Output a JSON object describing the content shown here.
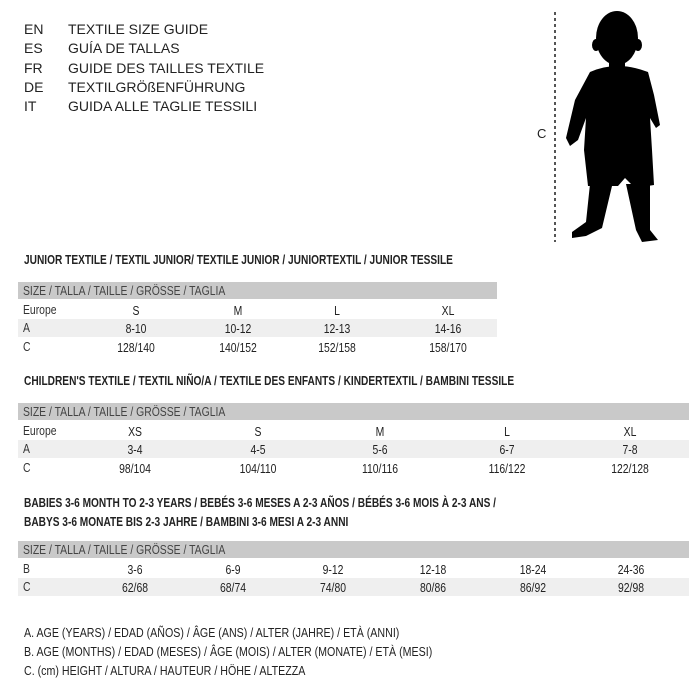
{
  "languages": [
    {
      "code": "EN",
      "title": "TEXTILE SIZE GUIDE"
    },
    {
      "code": "ES",
      "title": "GUÍA DE TALLAS"
    },
    {
      "code": "FR",
      "title": "GUIDE DES TAILLES TEXTILE"
    },
    {
      "code": "DE",
      "title": "TEXTILGRÖßENFÜHRUNG"
    },
    {
      "code": "IT",
      "title": "GUIDA ALLE TAGLIE TESSILI"
    }
  ],
  "figure": {
    "measure_label": "C",
    "icon": "child-silhouette"
  },
  "junior": {
    "title": "JUNIOR TEXTILE / TEXTIL JUNIOR/ TEXTILE JUNIOR / JUNIORTEXTIL / JUNIOR TESSILE",
    "header": "SIZE / TALLA / TAILLE / GRÖSSE / TAGLIA",
    "rows": [
      {
        "label": "Europe",
        "values": [
          "S",
          "M",
          "L",
          "XL"
        ]
      },
      {
        "label": "A",
        "values": [
          "8-10",
          "10-12",
          "12-13",
          "14-16"
        ]
      },
      {
        "label": "C",
        "values": [
          "128/140",
          "140/152",
          "152/158",
          "158/170"
        ]
      }
    ]
  },
  "children": {
    "title": "CHILDREN'S TEXTILE / TEXTIL NIÑO/A / TEXTILE DES ENFANTS / KINDERTEXTIL / BAMBINI TESSILE",
    "header": "SIZE / TALLA / TAILLE / GRÖSSE / TAGLIA",
    "rows": [
      {
        "label": "Europe",
        "values": [
          "XS",
          "S",
          "M",
          "L",
          "XL"
        ]
      },
      {
        "label": "A",
        "values": [
          "3-4",
          "4-5",
          "5-6",
          "6-7",
          "7-8"
        ]
      },
      {
        "label": "C",
        "values": [
          "98/104",
          "104/110",
          "110/116",
          "116/122",
          "122/128"
        ]
      }
    ]
  },
  "babies": {
    "title_line1": "BABIES 3-6 MONTH TO 2-3 YEARS / BEBÉS 3-6 MESES A 2-3 AÑOS / BÉBÉS 3-6 MOIS À 2-3 ANS /",
    "title_line2": "BABYS 3-6 MONATE BIS 2-3 JAHRE / BAMBINI 3-6 MESI A 2-3 ANNI",
    "header": "SIZE / TALLA / TAILLE / GRÖSSE / TAGLIA",
    "rows": [
      {
        "label": "B",
        "values": [
          "3-6",
          "6-9",
          "9-12",
          "12-18",
          "18-24",
          "24-36"
        ]
      },
      {
        "label": "C",
        "values": [
          "62/68",
          "68/74",
          "74/80",
          "80/86",
          "86/92",
          "92/98"
        ]
      }
    ]
  },
  "legend": [
    "A. AGE (YEARS) / EDAD (AÑOS) / ÂGE (ANS) / ALTER (JAHRE) / ETÀ (ANNI)",
    "B. AGE (MONTHS) / EDAD (MESES) / ÂGE (MOIS) / ALTER (MONATE) / ETÀ (MESI)",
    "C. (cm) HEIGHT / ALTURA / HAUTEUR / HÖHE / ALTEZZA"
  ],
  "colors": {
    "header_bg": "#c9c9c9",
    "shade_bg": "#efefef",
    "text": "#222222"
  }
}
